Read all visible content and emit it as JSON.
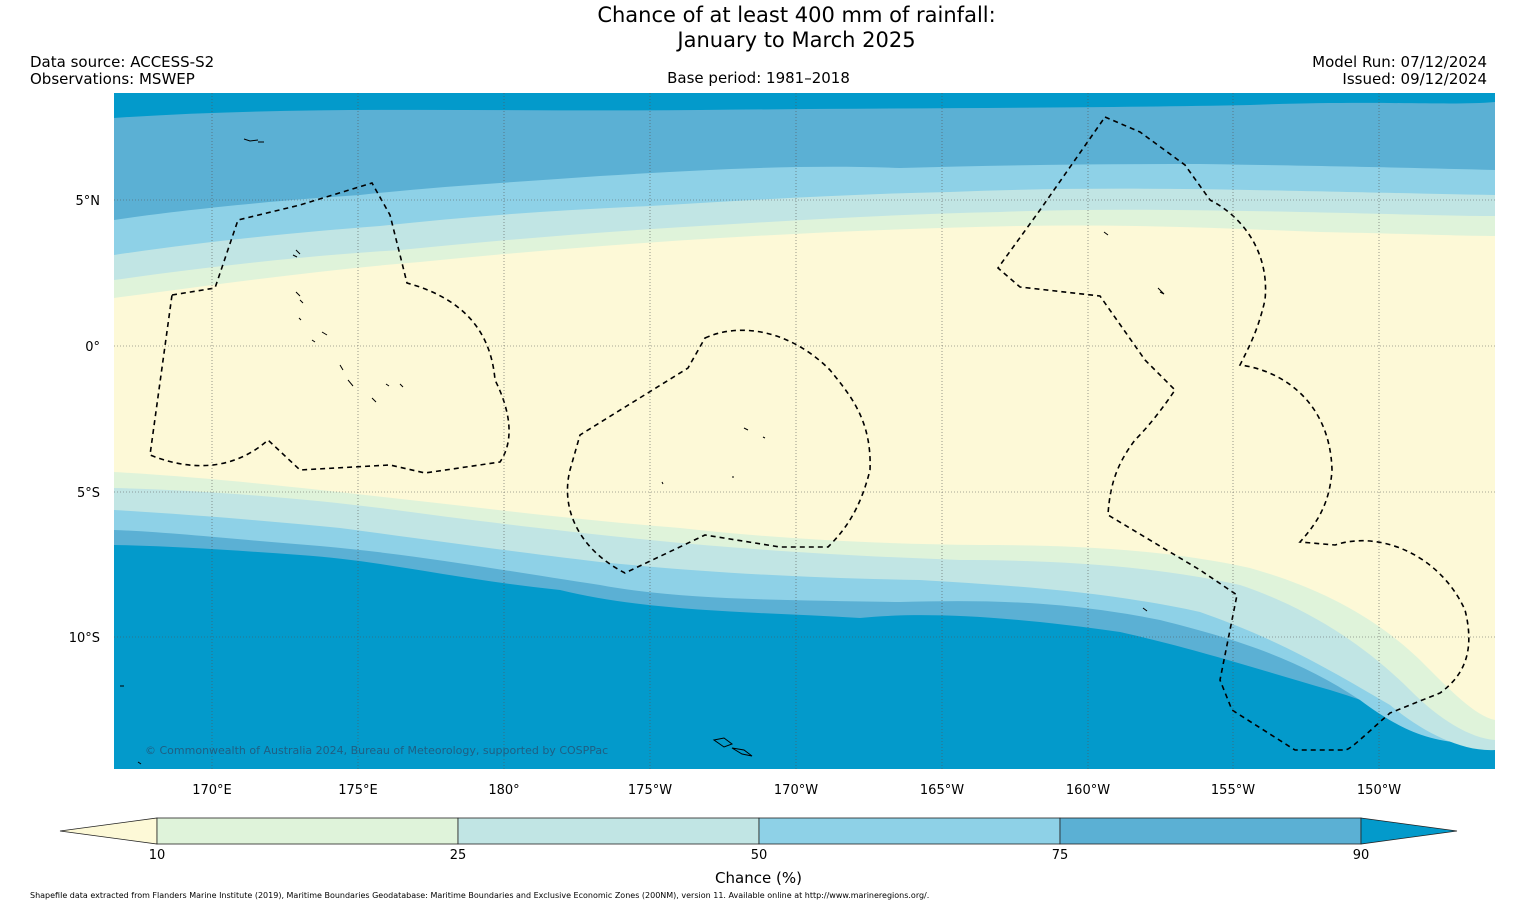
{
  "title": {
    "line1": "Chance of at least 400 mm of rainfall:",
    "line2": "January to March 2025"
  },
  "meta": {
    "data_source": "Data source: ACCESS-S2",
    "observations": "Observations: MSWEP",
    "base_period": "Base period: 1981–2018",
    "model_run": "Model Run: 07/12/2024",
    "issued": "Issued: 09/12/2024"
  },
  "map": {
    "copyright": "© Commonwealth of Australia 2024, Bureau of Meteorology, supported by COSPPac",
    "longitude_labels": [
      "170°E",
      "175°E",
      "180°",
      "175°W",
      "170°W",
      "165°W",
      "160°W",
      "155°W",
      "150°W"
    ],
    "latitude_labels": [
      "5°N",
      "0°",
      "5°S",
      "10°S"
    ]
  },
  "colorbar": {
    "title": "Chance (%)",
    "ticks": [
      "10",
      "25",
      "50",
      "75",
      "90"
    ],
    "colors": [
      "#fdf9d7",
      "#dff3da",
      "#c1e5e4",
      "#8ed1e7",
      "#5bb0d4",
      "#039acb"
    ]
  },
  "footnote": "Shapefile data extracted from Flanders Marine Institute (2019), Maritime Boundaries Geodatabase: Maritime Boundaries and Exclusive Economic Zones (200NM), version 11. Available online at http://www.marineregions.org/."
}
